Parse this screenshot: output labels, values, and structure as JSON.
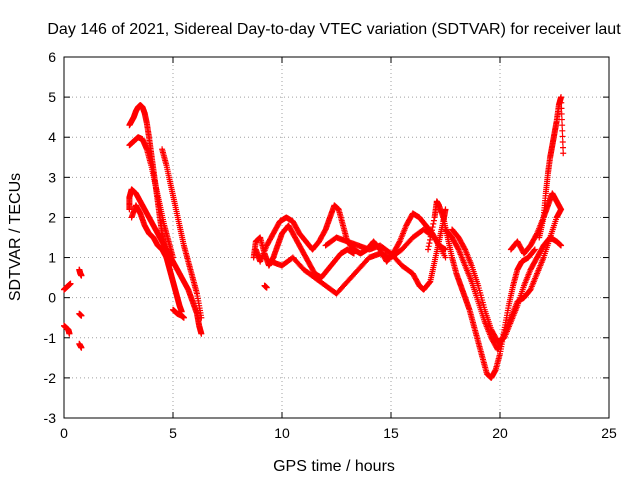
{
  "chart_data": {
    "type": "scatter",
    "title": "Day 146 of 2021, Sidereal Day-to-day VTEC variation (SDTVAR) for receiver laut",
    "xlabel": "GPS time / hours",
    "ylabel": "SDTVAR / TECUs",
    "xlim": [
      0,
      25
    ],
    "ylim": [
      -3,
      6
    ],
    "xticks": [
      0,
      5,
      10,
      15,
      20,
      25
    ],
    "yticks": [
      -3,
      -2,
      -1,
      0,
      1,
      2,
      3,
      4,
      5,
      6
    ],
    "grid": true,
    "marker": "plus",
    "series_color": "#ff0000",
    "segments": [
      [
        [
          0.0,
          -0.7
        ],
        [
          0.1,
          -0.75
        ],
        [
          0.2,
          -0.8
        ],
        [
          0.25,
          -0.9
        ]
      ],
      [
        [
          0.0,
          0.2
        ],
        [
          0.1,
          0.25
        ],
        [
          0.2,
          0.3
        ],
        [
          0.3,
          0.35
        ]
      ],
      [
        [
          0.7,
          0.7
        ],
        [
          0.75,
          0.6
        ],
        [
          0.8,
          0.55
        ]
      ],
      [
        [
          0.7,
          -0.4
        ],
        [
          0.8,
          -0.45
        ]
      ],
      [
        [
          0.7,
          -1.15
        ],
        [
          0.8,
          -1.25
        ]
      ],
      [
        [
          3.0,
          2.2
        ],
        [
          3.0,
          2.5
        ],
        [
          3.1,
          2.7
        ],
        [
          3.3,
          2.6
        ],
        [
          3.5,
          2.4
        ],
        [
          3.7,
          2.2
        ],
        [
          3.9,
          2.0
        ],
        [
          4.1,
          1.8
        ],
        [
          4.3,
          1.6
        ],
        [
          4.5,
          1.4
        ],
        [
          4.7,
          1.2
        ],
        [
          4.9,
          1.0
        ],
        [
          5.1,
          0.8
        ],
        [
          5.3,
          0.6
        ],
        [
          5.5,
          0.4
        ],
        [
          5.7,
          0.2
        ],
        [
          5.9,
          -0.1
        ],
        [
          6.1,
          -0.4
        ],
        [
          6.2,
          -0.7
        ],
        [
          6.3,
          -0.9
        ]
      ],
      [
        [
          3.0,
          4.3
        ],
        [
          3.1,
          4.4
        ],
        [
          3.2,
          4.5
        ],
        [
          3.3,
          4.65
        ],
        [
          3.4,
          4.75
        ],
        [
          3.5,
          4.8
        ],
        [
          3.6,
          4.75
        ],
        [
          3.7,
          4.6
        ],
        [
          3.8,
          4.35
        ],
        [
          3.9,
          4.0
        ],
        [
          4.0,
          3.6
        ],
        [
          4.1,
          3.2
        ],
        [
          4.2,
          2.8
        ],
        [
          4.3,
          2.4
        ],
        [
          4.4,
          2.0
        ],
        [
          4.5,
          1.6
        ],
        [
          4.6,
          1.3
        ],
        [
          4.7,
          1.0
        ],
        [
          4.8,
          0.8
        ],
        [
          4.9,
          0.6
        ],
        [
          5.0,
          0.4
        ],
        [
          5.1,
          0.2
        ],
        [
          5.2,
          0.0
        ],
        [
          5.3,
          -0.2
        ],
        [
          5.4,
          -0.35
        ]
      ],
      [
        [
          3.0,
          3.8
        ],
        [
          3.2,
          3.9
        ],
        [
          3.4,
          4.0
        ],
        [
          3.6,
          3.95
        ],
        [
          3.8,
          3.7
        ],
        [
          4.0,
          3.3
        ],
        [
          4.2,
          2.8
        ],
        [
          4.4,
          2.3
        ],
        [
          4.6,
          1.8
        ],
        [
          4.8,
          1.4
        ],
        [
          5.0,
          1.0
        ]
      ],
      [
        [
          4.5,
          3.7
        ],
        [
          4.7,
          3.3
        ],
        [
          4.9,
          2.8
        ],
        [
          5.1,
          2.3
        ],
        [
          5.3,
          1.8
        ],
        [
          5.5,
          1.3
        ],
        [
          5.7,
          0.9
        ],
        [
          5.9,
          0.5
        ],
        [
          6.1,
          0.1
        ],
        [
          6.3,
          -0.5
        ]
      ],
      [
        [
          5.0,
          -0.3
        ],
        [
          5.2,
          -0.4
        ],
        [
          5.4,
          -0.45
        ],
        [
          5.5,
          -0.5
        ]
      ],
      [
        [
          3.1,
          2.0
        ],
        [
          3.3,
          2.3
        ],
        [
          3.5,
          2.1
        ],
        [
          3.7,
          1.8
        ],
        [
          3.9,
          1.6
        ],
        [
          4.1,
          1.5
        ],
        [
          4.3,
          1.3
        ],
        [
          4.5,
          1.2
        ],
        [
          4.7,
          1.0
        ],
        [
          4.9,
          0.8
        ]
      ],
      [
        [
          9.2,
          0.3
        ],
        [
          9.3,
          0.25
        ]
      ],
      [
        [
          8.7,
          1.0
        ],
        [
          8.8,
          1.4
        ],
        [
          9.0,
          1.5
        ],
        [
          9.2,
          1.1
        ],
        [
          9.4,
          0.8
        ],
        [
          9.6,
          1.0
        ],
        [
          9.8,
          1.3
        ],
        [
          10.0,
          1.6
        ],
        [
          10.3,
          1.8
        ],
        [
          10.6,
          1.5
        ],
        [
          10.9,
          1.2
        ],
        [
          11.2,
          0.9
        ],
        [
          11.5,
          0.6
        ],
        [
          11.8,
          0.5
        ],
        [
          12.1,
          0.7
        ],
        [
          12.4,
          0.9
        ],
        [
          12.7,
          1.1
        ],
        [
          13.0,
          1.2
        ],
        [
          13.3,
          1.1
        ]
      ],
      [
        [
          8.8,
          1.2
        ],
        [
          9.0,
          0.9
        ],
        [
          9.3,
          1.3
        ],
        [
          9.6,
          1.6
        ],
        [
          9.9,
          1.9
        ],
        [
          10.2,
          2.0
        ],
        [
          10.5,
          1.9
        ],
        [
          10.8,
          1.6
        ],
        [
          11.1,
          1.4
        ],
        [
          11.4,
          1.2
        ],
        [
          11.7,
          1.4
        ],
        [
          12.0,
          1.7
        ],
        [
          12.2,
          2.0
        ],
        [
          12.4,
          2.3
        ],
        [
          12.6,
          2.2
        ],
        [
          12.8,
          1.8
        ],
        [
          13.0,
          1.4
        ],
        [
          13.3,
          1.2
        ],
        [
          13.6,
          1.1
        ],
        [
          13.9,
          1.2
        ],
        [
          14.2,
          1.4
        ],
        [
          14.5,
          1.2
        ],
        [
          14.8,
          0.9
        ],
        [
          15.1,
          1.1
        ],
        [
          15.4,
          1.4
        ],
        [
          15.7,
          1.8
        ],
        [
          16.0,
          2.1
        ],
        [
          16.3,
          2.0
        ],
        [
          16.6,
          1.8
        ],
        [
          16.9,
          1.6
        ],
        [
          17.2,
          1.3
        ],
        [
          17.5,
          1.2
        ]
      ],
      [
        [
          9.5,
          0.9
        ],
        [
          10.0,
          0.8
        ],
        [
          10.5,
          1.0
        ],
        [
          11.0,
          0.7
        ],
        [
          11.5,
          0.5
        ],
        [
          12.0,
          0.3
        ],
        [
          12.5,
          0.1
        ],
        [
          13.0,
          0.4
        ],
        [
          13.5,
          0.7
        ],
        [
          14.0,
          1.0
        ],
        [
          14.5,
          1.1
        ],
        [
          15.0,
          1.0
        ],
        [
          15.5,
          1.2
        ],
        [
          16.0,
          1.5
        ],
        [
          16.5,
          1.7
        ],
        [
          17.0,
          1.5
        ],
        [
          17.5,
          1.0
        ]
      ],
      [
        [
          12.0,
          1.3
        ],
        [
          12.5,
          1.5
        ],
        [
          13.0,
          1.4
        ],
        [
          13.5,
          1.3
        ],
        [
          14.0,
          1.2
        ],
        [
          14.5,
          1.3
        ],
        [
          15.0,
          1.1
        ],
        [
          15.5,
          0.8
        ],
        [
          16.0,
          0.6
        ],
        [
          16.3,
          0.3
        ],
        [
          16.5,
          0.2
        ],
        [
          16.8,
          0.4
        ],
        [
          17.0,
          0.9
        ],
        [
          17.2,
          1.4
        ],
        [
          17.4,
          1.9
        ],
        [
          17.5,
          2.2
        ]
      ],
      [
        [
          16.7,
          1.2
        ],
        [
          17.0,
          2.0
        ],
        [
          17.1,
          2.4
        ],
        [
          17.2,
          2.3
        ],
        [
          17.4,
          2.0
        ],
        [
          17.6,
          1.5
        ],
        [
          17.8,
          1.0
        ],
        [
          18.0,
          0.6
        ],
        [
          18.2,
          0.3
        ],
        [
          18.4,
          0.0
        ],
        [
          18.6,
          -0.3
        ],
        [
          18.8,
          -0.7
        ],
        [
          19.0,
          -1.1
        ],
        [
          19.2,
          -1.5
        ],
        [
          19.4,
          -1.9
        ],
        [
          19.6,
          -2.0
        ],
        [
          19.8,
          -1.8
        ],
        [
          20.0,
          -1.4
        ],
        [
          20.2,
          -0.8
        ],
        [
          20.4,
          -0.2
        ],
        [
          20.6,
          0.3
        ],
        [
          20.8,
          0.7
        ],
        [
          21.0,
          0.9
        ],
        [
          21.3,
          1.0
        ],
        [
          21.6,
          1.2
        ]
      ],
      [
        [
          17.5,
          1.7
        ],
        [
          17.8,
          1.5
        ],
        [
          18.1,
          1.2
        ],
        [
          18.4,
          0.8
        ],
        [
          18.7,
          0.4
        ],
        [
          19.0,
          -0.1
        ],
        [
          19.3,
          -0.6
        ],
        [
          19.6,
          -1.0
        ],
        [
          19.9,
          -1.3
        ],
        [
          20.2,
          -0.9
        ],
        [
          20.5,
          -0.5
        ],
        [
          20.8,
          -0.1
        ],
        [
          21.1,
          0.0
        ],
        [
          21.4,
          0.2
        ],
        [
          21.7,
          0.6
        ],
        [
          22.0,
          1.0
        ],
        [
          22.3,
          1.5
        ],
        [
          22.6,
          2.0
        ],
        [
          22.8,
          2.2
        ]
      ],
      [
        [
          17.8,
          1.7
        ],
        [
          18.1,
          1.5
        ],
        [
          18.4,
          1.2
        ],
        [
          18.7,
          0.8
        ],
        [
          19.0,
          0.3
        ],
        [
          19.3,
          -0.3
        ],
        [
          19.6,
          -0.8
        ],
        [
          19.9,
          -1.1
        ],
        [
          20.2,
          -1.0
        ],
        [
          20.5,
          -0.6
        ],
        [
          20.8,
          -0.2
        ],
        [
          21.1,
          0.3
        ],
        [
          21.4,
          0.7
        ],
        [
          21.7,
          1.0
        ],
        [
          22.0,
          1.3
        ],
        [
          22.3,
          1.5
        ],
        [
          22.6,
          1.4
        ],
        [
          22.8,
          1.3
        ]
      ],
      [
        [
          20.5,
          1.2
        ],
        [
          20.8,
          1.4
        ],
        [
          21.1,
          1.1
        ],
        [
          21.4,
          1.3
        ],
        [
          21.7,
          1.6
        ],
        [
          22.0,
          2.0
        ],
        [
          22.2,
          2.3
        ],
        [
          22.4,
          2.6
        ],
        [
          22.6,
          2.4
        ],
        [
          22.8,
          2.2
        ]
      ],
      [
        [
          21.8,
          1.5
        ],
        [
          22.0,
          2.0
        ],
        [
          22.1,
          2.6
        ],
        [
          22.2,
          3.1
        ],
        [
          22.3,
          3.5
        ],
        [
          22.4,
          3.8
        ],
        [
          22.5,
          4.1
        ],
        [
          22.6,
          4.4
        ],
        [
          22.7,
          4.8
        ],
        [
          22.8,
          5.0
        ],
        [
          22.9,
          3.6
        ]
      ]
    ]
  }
}
